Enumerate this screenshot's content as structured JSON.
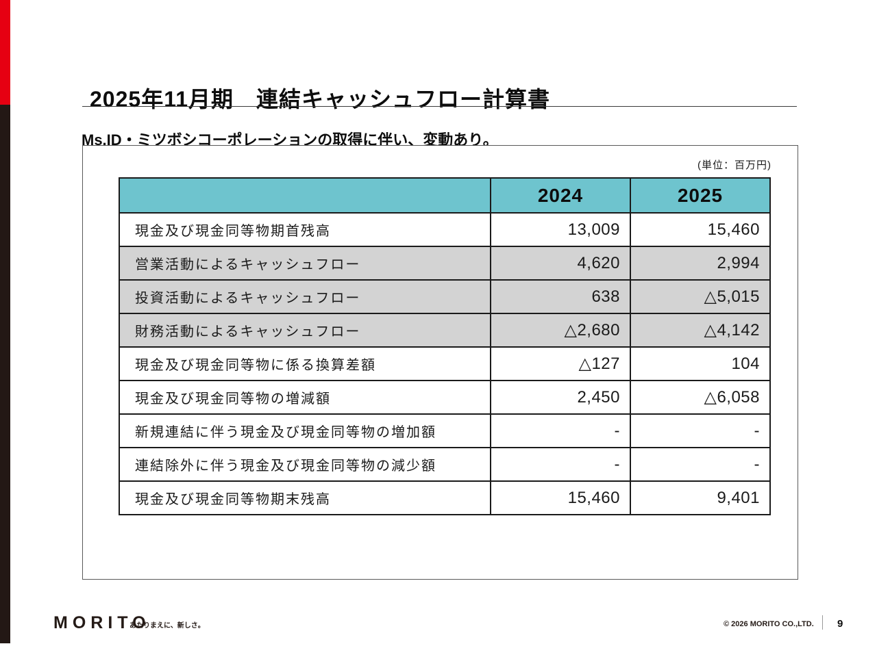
{
  "page": {
    "title": "2025年11月期　連結キャッシュフロー計算書",
    "subtitle": "Ms.ID・ミツボシコーポレーションの取得に伴い、変動あり。",
    "unit_note": "(単位：百万円)"
  },
  "table": {
    "columns": [
      "",
      "2024",
      "2025"
    ],
    "rows": [
      {
        "label": "現金及び現金同等物期首残高",
        "y2024": "13,009",
        "y2025": "15,460",
        "highlight": false
      },
      {
        "label": "営業活動によるキャッシュフロー",
        "y2024": "4,620",
        "y2025": "2,994",
        "highlight": true
      },
      {
        "label": "投資活動によるキャッシュフロー",
        "y2024": "638",
        "y2025": "△5,015",
        "highlight": true
      },
      {
        "label": "財務活動によるキャッシュフロー",
        "y2024": "△2,680",
        "y2025": "△4,142",
        "highlight": true
      },
      {
        "label": "現金及び現金同等物に係る換算差額",
        "y2024": "△127",
        "y2025": "104",
        "highlight": false
      },
      {
        "label": "現金及び現金同等物の増減額",
        "y2024": "2,450",
        "y2025": "△6,058",
        "highlight": false
      },
      {
        "label": "新規連結に伴う現金及び現金同等物の増加額",
        "y2024": "-",
        "y2025": "-",
        "highlight": false
      },
      {
        "label": "連結除外に伴う現金及び現金同等物の減少額",
        "y2024": "-",
        "y2025": "-",
        "highlight": false
      },
      {
        "label": "現金及び現金同等物期末残高",
        "y2024": "15,460",
        "y2025": "9,401",
        "highlight": false
      }
    ]
  },
  "footer": {
    "logo": "MORITO",
    "tagline": "あたりまえに、新しさ。",
    "copyright": "© 2026 MORITO CO.,LTD.",
    "page_number": "9"
  },
  "colors": {
    "accent_red": "#E60012",
    "bar_black": "#231815",
    "header_teal": "#6EC4CE",
    "row_gray": "#D3D3D3"
  }
}
